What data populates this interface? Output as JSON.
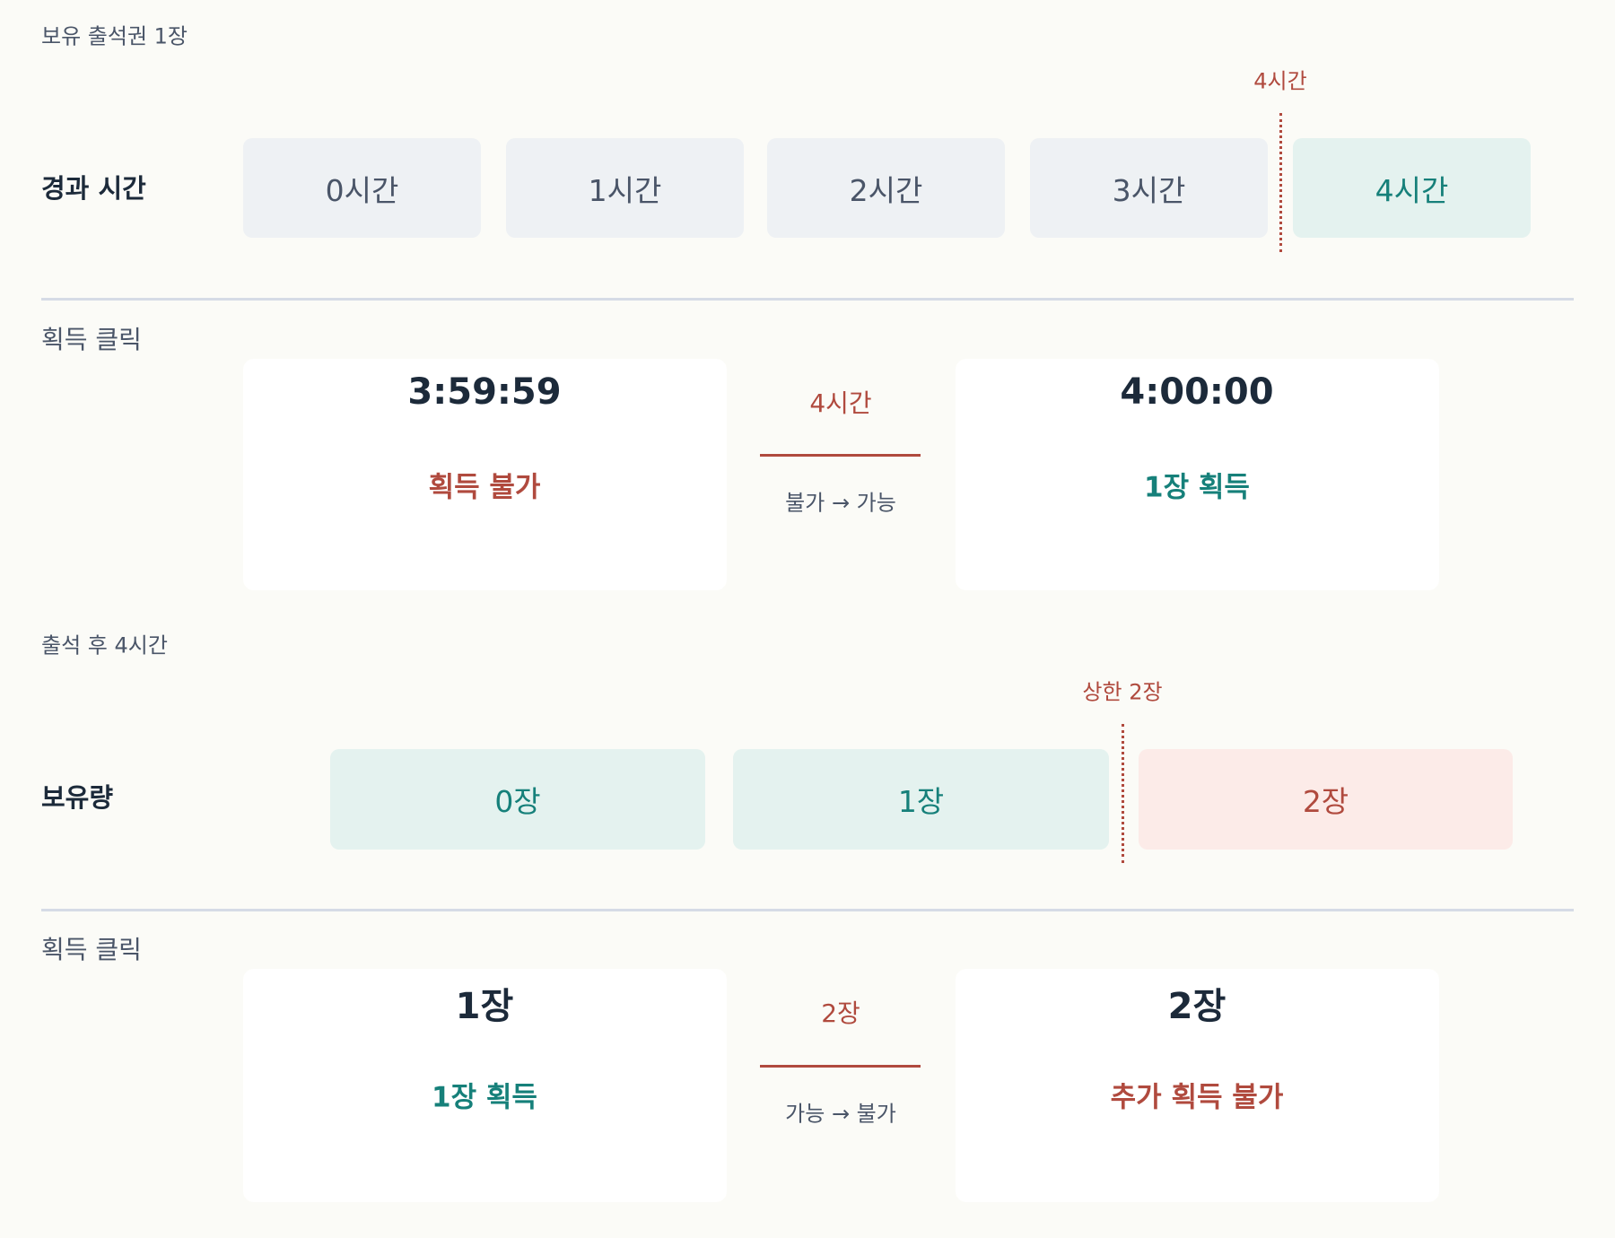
{
  "section1": {
    "caption": "보유 출석권 1장",
    "row_label": "경과 시간",
    "marker": "4시간",
    "cells": [
      "0시간",
      "1시간",
      "2시간",
      "3시간",
      "4시간"
    ]
  },
  "compare1": {
    "label": "획득 클릭",
    "left": {
      "value": "3:59:59",
      "status": "획득 불가"
    },
    "middle": {
      "label": "4시간",
      "transition": "불가 → 가능"
    },
    "right": {
      "value": "4:00:00",
      "status": "1장 획득"
    }
  },
  "section2": {
    "caption": "출석 후 4시간",
    "row_label": "보유량",
    "marker": "상한 2장",
    "cells": [
      "0장",
      "1장",
      "2장"
    ]
  },
  "compare2": {
    "label": "획득 클릭",
    "left": {
      "value": "1장",
      "status": "1장 획득"
    },
    "middle": {
      "label": "2장",
      "transition": "가능 → 불가"
    },
    "right": {
      "value": "2장",
      "status": "추가 획득 불가"
    }
  }
}
